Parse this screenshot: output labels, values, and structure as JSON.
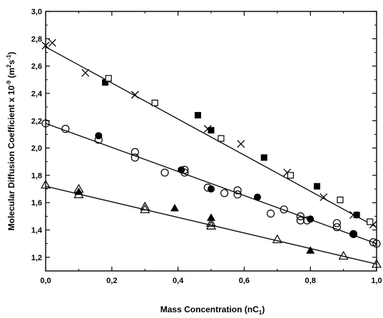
{
  "chart_data": {
    "type": "scatter",
    "title": "",
    "xlabel": "Mass Concentration (nC",
    "xlabel_sub": "1",
    "xlabel_close": ")",
    "ylabel": "Molecular Diffusion Coefficient x 10",
    "ylabel_exp": "-9",
    "ylabel_unit": " (m",
    "ylabel_unit_exp": "2",
    "ylabel_unit_s": "s",
    "ylabel_unit_s_exp": "-1",
    "ylabel_close": ")",
    "xlim": [
      0.0,
      1.0
    ],
    "ylim": [
      1.1,
      3.0
    ],
    "x_ticks": [
      {
        "v": 0.0,
        "label": "0,0"
      },
      {
        "v": 0.2,
        "label": "0,2"
      },
      {
        "v": 0.4,
        "label": "0,4"
      },
      {
        "v": 0.6,
        "label": "0,6"
      },
      {
        "v": 0.8,
        "label": "0,8"
      },
      {
        "v": 1.0,
        "label": "1,0"
      }
    ],
    "y_ticks": [
      {
        "v": 1.2,
        "label": "1,2"
      },
      {
        "v": 1.4,
        "label": "1,4"
      },
      {
        "v": 1.6,
        "label": "1,6"
      },
      {
        "v": 1.8,
        "label": "1,8"
      },
      {
        "v": 2.0,
        "label": "2,0"
      },
      {
        "v": 2.2,
        "label": "2,2"
      },
      {
        "v": 2.4,
        "label": "2,4"
      },
      {
        "v": 2.6,
        "label": "2,6"
      },
      {
        "v": 2.8,
        "label": "2,8"
      },
      {
        "v": 3.0,
        "label": "3,0"
      }
    ],
    "legend": "none",
    "grid": false,
    "series": [
      {
        "marker": "cross",
        "points": [
          [
            0.0,
            2.75
          ],
          [
            0.02,
            2.77
          ],
          [
            0.12,
            2.55
          ],
          [
            0.27,
            2.39
          ],
          [
            0.49,
            2.14
          ],
          [
            0.59,
            2.03
          ],
          [
            0.73,
            1.82
          ],
          [
            0.84,
            1.64
          ],
          [
            0.93,
            1.51
          ],
          [
            0.99,
            1.44
          ]
        ]
      },
      {
        "marker": "square-filled",
        "points": [
          [
            0.18,
            2.48
          ],
          [
            0.46,
            2.24
          ],
          [
            0.5,
            2.13
          ],
          [
            0.66,
            1.93
          ],
          [
            0.82,
            1.72
          ],
          [
            0.94,
            1.51
          ]
        ]
      },
      {
        "marker": "square-open",
        "points": [
          [
            0.19,
            2.51
          ],
          [
            0.33,
            2.33
          ],
          [
            0.53,
            2.07
          ],
          [
            0.74,
            1.8
          ],
          [
            0.89,
            1.62
          ],
          [
            0.98,
            1.46
          ]
        ]
      },
      {
        "marker": "circle-open",
        "points": [
          [
            0.0,
            2.18
          ],
          [
            0.06,
            2.14
          ],
          [
            0.16,
            2.06
          ],
          [
            0.27,
            1.97
          ],
          [
            0.27,
            1.93
          ],
          [
            0.36,
            1.82
          ],
          [
            0.42,
            1.84
          ],
          [
            0.42,
            1.82
          ],
          [
            0.49,
            1.71
          ],
          [
            0.54,
            1.67
          ],
          [
            0.58,
            1.69
          ],
          [
            0.58,
            1.66
          ],
          [
            0.68,
            1.52
          ],
          [
            0.72,
            1.55
          ],
          [
            0.77,
            1.5
          ],
          [
            0.77,
            1.47
          ],
          [
            0.79,
            1.47
          ],
          [
            0.88,
            1.45
          ],
          [
            0.88,
            1.42
          ],
          [
            0.93,
            1.37
          ],
          [
            0.99,
            1.31
          ],
          [
            1.0,
            1.3
          ]
        ]
      },
      {
        "marker": "circle-filled",
        "points": [
          [
            0.16,
            2.09
          ],
          [
            0.41,
            1.84
          ],
          [
            0.5,
            1.7
          ],
          [
            0.64,
            1.64
          ],
          [
            0.8,
            1.48
          ],
          [
            0.93,
            1.37
          ]
        ]
      },
      {
        "marker": "triangle-open",
        "points": [
          [
            0.0,
            1.73
          ],
          [
            0.1,
            1.7
          ],
          [
            0.1,
            1.66
          ],
          [
            0.3,
            1.57
          ],
          [
            0.3,
            1.55
          ],
          [
            0.5,
            1.45
          ],
          [
            0.5,
            1.43
          ],
          [
            0.7,
            1.33
          ],
          [
            0.9,
            1.21
          ],
          [
            1.0,
            1.15
          ]
        ]
      },
      {
        "marker": "triangle-filled",
        "points": [
          [
            0.1,
            1.68
          ],
          [
            0.39,
            1.56
          ],
          [
            0.5,
            1.49
          ],
          [
            0.8,
            1.25
          ]
        ]
      }
    ],
    "fit_lines": [
      {
        "points": [
          [
            0.0,
            2.74
          ],
          [
            1.0,
            1.42
          ]
        ]
      },
      {
        "points": [
          [
            0.0,
            2.18
          ],
          [
            1.0,
            1.3
          ]
        ]
      },
      {
        "points": [
          [
            0.0,
            1.72
          ],
          [
            1.0,
            1.15
          ]
        ]
      }
    ]
  }
}
